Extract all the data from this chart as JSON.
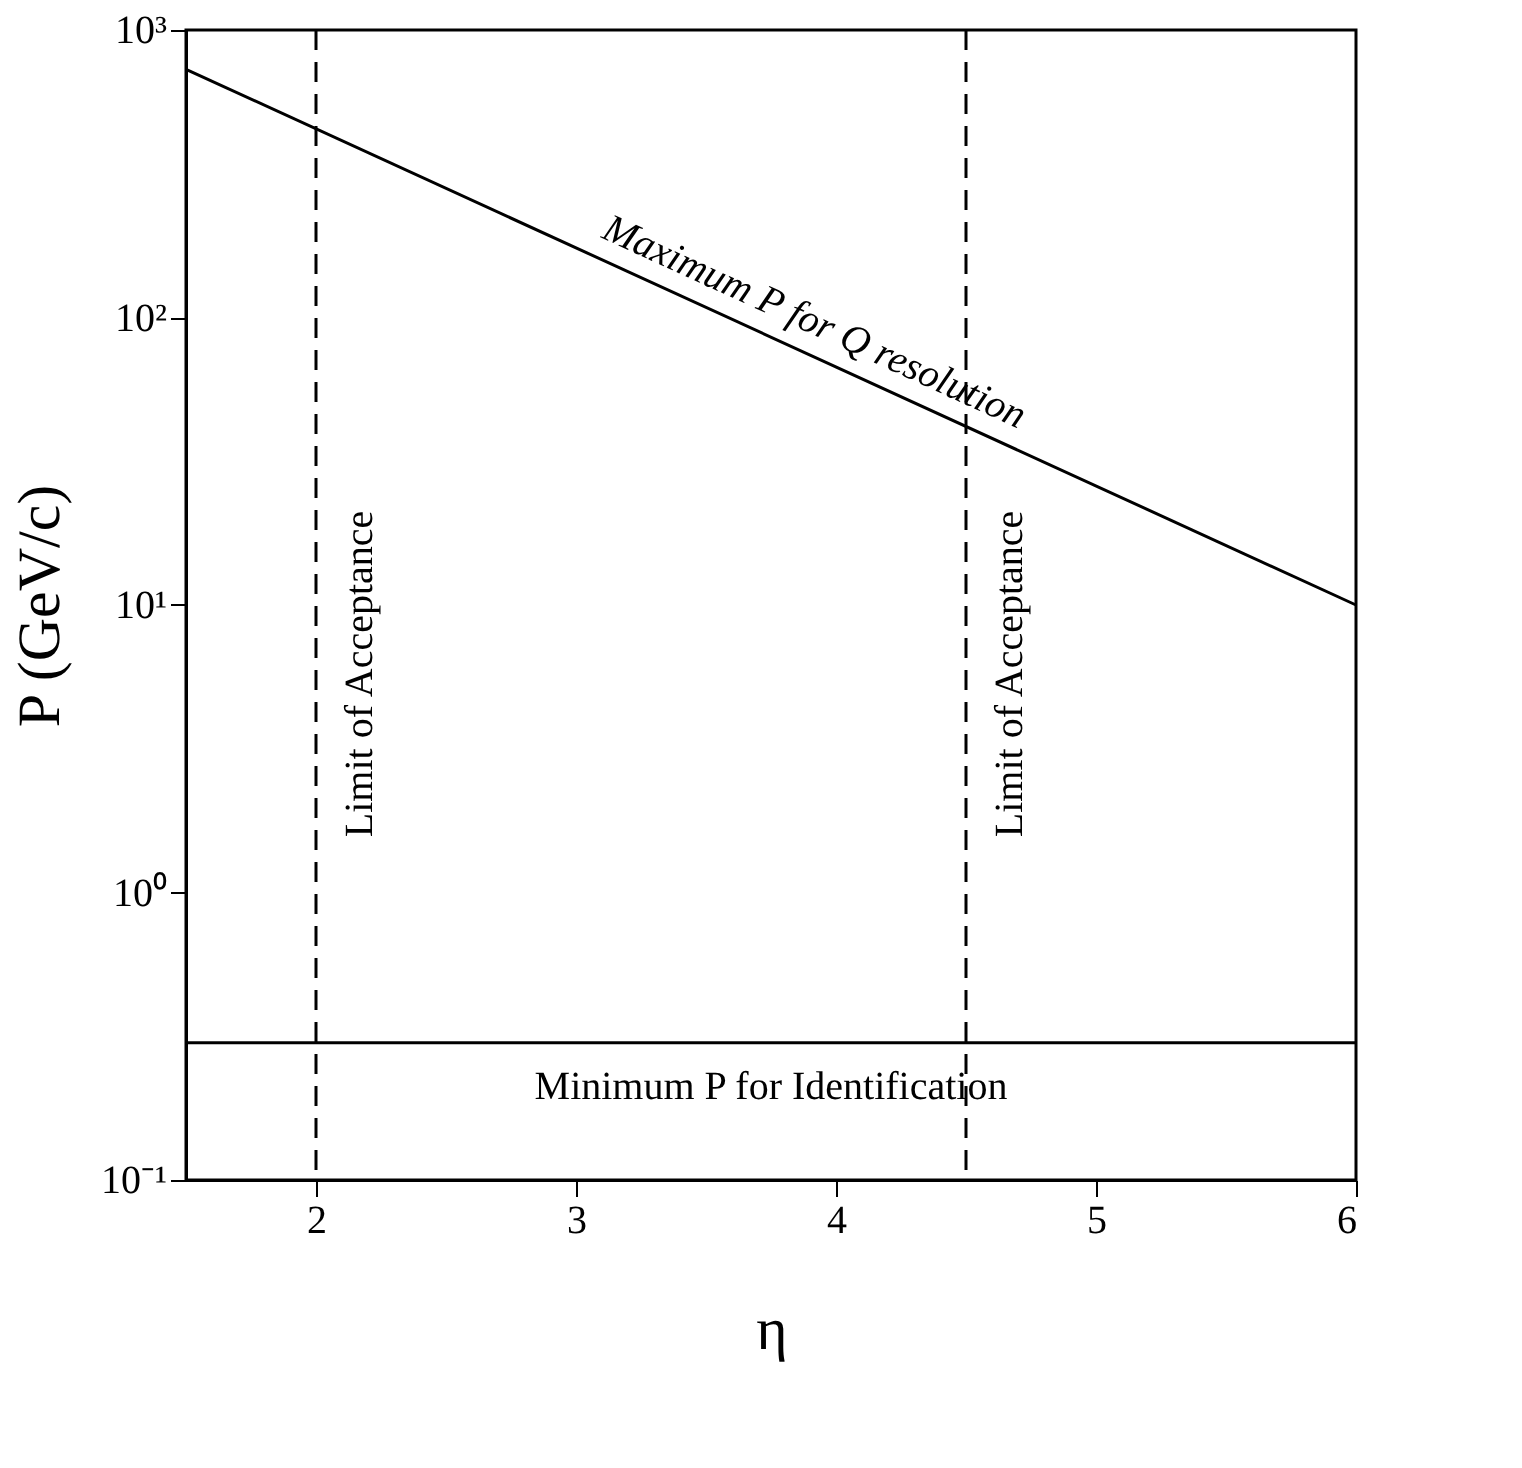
{
  "chart_data": {
    "type": "line",
    "xlabel": "η",
    "ylabel": "P (GeV/c)",
    "series": [
      {
        "name": "Maximum P for Q resolution",
        "color": "#000000",
        "x": [
          1.5,
          6
        ],
        "values": [
          730,
          10
        ]
      }
    ],
    "xlim": [
      1.5,
      6
    ],
    "xticks": [
      2,
      3,
      4,
      5,
      6
    ],
    "ylim": [
      0.1,
      1000
    ],
    "yticks": [
      {
        "value": 0.1,
        "label": "10⁻¹"
      },
      {
        "value": 1,
        "label": "10⁰"
      },
      {
        "value": 10,
        "label": "10¹"
      },
      {
        "value": 100,
        "label": "10²"
      },
      {
        "value": 1000,
        "label": "10³"
      }
    ],
    "log": "y",
    "grid": false,
    "marker": "none",
    "line_style": "solid",
    "ref_lines": [
      {
        "axis": "x",
        "value": 2,
        "label": "Limit of Acceptance",
        "line_style": "dashed"
      },
      {
        "axis": "x",
        "value": 4.5,
        "label": "Limit of Acceptance",
        "line_style": "dashed"
      },
      {
        "axis": "y",
        "value": 0.3,
        "label": "Minimum P for Identification",
        "line_style": "solid"
      }
    ]
  }
}
